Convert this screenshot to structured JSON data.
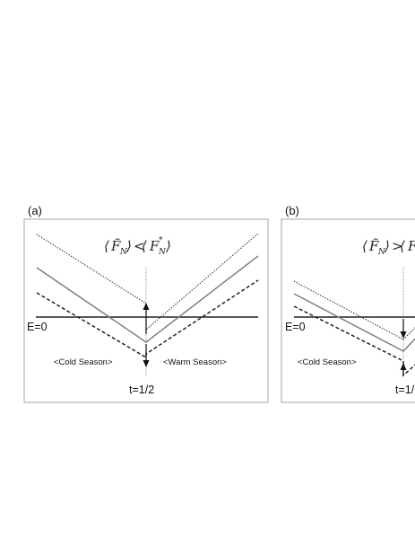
{
  "panels": [
    {
      "label": "(a)",
      "equation": {
        "left_symbol": "F̃",
        "left_subscript": "N",
        "relation": "<",
        "right_symbol": "F",
        "right_superscript": "*",
        "right_subscript": "N"
      },
      "zero_label": "E=0",
      "cold_label": "<Cold Season>",
      "warm_label": "<Warm Season>",
      "time_label": "t=1/2"
    },
    {
      "label": "(b)",
      "equation": {
        "left_symbol": "F̃",
        "left_subscript": "N",
        "relation": ">",
        "right_symbol": "F",
        "right_superscript": "",
        "right_subscript": ""
      },
      "zero_label": "E=0",
      "cold_label": "<Cold Season>",
      "warm_label": "",
      "time_label": "t=1/"
    }
  ],
  "colors": {
    "frame": "#a6a6a6",
    "zero_line": "#222222",
    "solid_curve": "#7f7f7f",
    "dashed_curve": "#222222",
    "dotted_curve": "#333333",
    "arrow": "#111111"
  }
}
